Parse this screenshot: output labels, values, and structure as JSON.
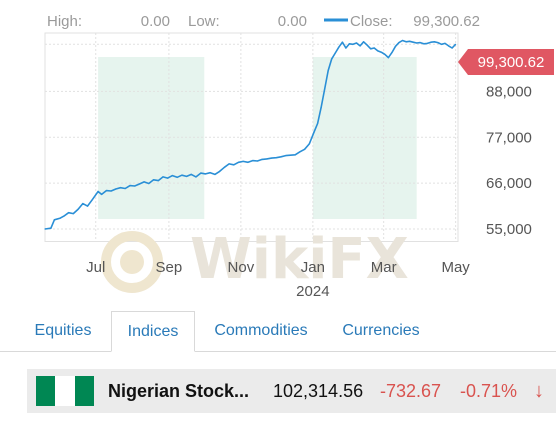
{
  "stats": {
    "high_label": "High:",
    "high_value": "0.00",
    "low_label": "Low:",
    "low_value": "0.00",
    "close_label": "Close:",
    "close_value": "99,300.62"
  },
  "price_badge": "99,300.62",
  "watermark": "WikiFX",
  "colors": {
    "line": "#2a8fd6",
    "shade": "#e6f4ee",
    "badge": "#e05763",
    "negative": "#d9534f",
    "tab_text": "#2a7ab8"
  },
  "tabs": [
    {
      "label": "Equities",
      "active": false
    },
    {
      "label": "Indices",
      "active": true
    },
    {
      "label": "Commodities",
      "active": false
    },
    {
      "label": "Currencies",
      "active": false
    }
  ],
  "row": {
    "flag": [
      "#008753",
      "#ffffff",
      "#008753"
    ],
    "name": "Nigerian Stock...",
    "last": "102,314.56",
    "change": "-732.67",
    "change_pct": "-0.71%",
    "arrow": "↓"
  },
  "chart_data": {
    "type": "line",
    "title": "",
    "xlabel": "",
    "ylabel": "",
    "ylim": [
      52000,
      102000
    ],
    "y_ticks": [
      {
        "value": 55000,
        "label": "55,000"
      },
      {
        "value": 66000,
        "label": "66,000"
      },
      {
        "value": 77000,
        "label": "77,000"
      },
      {
        "value": 88000,
        "label": "88,000"
      }
    ],
    "xlim": [
      "2023-05-19",
      "2024-05-03"
    ],
    "x_ticks": [
      {
        "date": "2023-07-01",
        "label": "Jul"
      },
      {
        "date": "2023-09-01",
        "label": "Sep"
      },
      {
        "date": "2023-11-01",
        "label": "Nov"
      },
      {
        "date": "2024-01-01",
        "label": "Jan",
        "sub": "2024"
      },
      {
        "date": "2024-03-01",
        "label": "Mar"
      },
      {
        "date": "2024-05-01",
        "label": "May"
      }
    ],
    "grid": true,
    "shaded_ranges": [
      [
        "2023-07-03",
        "2023-10-01"
      ],
      [
        "2024-01-01",
        "2024-03-29"
      ]
    ],
    "series": [
      {
        "x": [
          "2023-05-19",
          "2023-05-24",
          "2023-05-27",
          "2023-06-01",
          "2023-06-04",
          "2023-06-08",
          "2023-06-12",
          "2023-06-16",
          "2023-06-20",
          "2023-06-24",
          "2023-06-28",
          "2023-07-03",
          "2023-07-06",
          "2023-07-10",
          "2023-07-14",
          "2023-07-18",
          "2023-07-22",
          "2023-07-26",
          "2023-07-30",
          "2023-08-03",
          "2023-08-07",
          "2023-08-11",
          "2023-08-15",
          "2023-08-19",
          "2023-08-23",
          "2023-08-27",
          "2023-08-31",
          "2023-09-04",
          "2023-09-08",
          "2023-09-12",
          "2023-09-16",
          "2023-09-20",
          "2023-09-24",
          "2023-09-28",
          "2023-10-02",
          "2023-10-06",
          "2023-10-10",
          "2023-10-14",
          "2023-10-18",
          "2023-10-22",
          "2023-10-26",
          "2023-10-30",
          "2023-11-03",
          "2023-11-07",
          "2023-11-11",
          "2023-11-15",
          "2023-11-19",
          "2023-11-23",
          "2023-11-27",
          "2023-12-01",
          "2023-12-05",
          "2023-12-09",
          "2023-12-13",
          "2023-12-17",
          "2023-12-21",
          "2023-12-25",
          "2023-12-29",
          "2024-01-02",
          "2024-01-05",
          "2024-01-08",
          "2024-01-11",
          "2024-01-14",
          "2024-01-17",
          "2024-01-20",
          "2024-01-23",
          "2024-01-26",
          "2024-01-29",
          "2024-02-01",
          "2024-02-04",
          "2024-02-07",
          "2024-02-10",
          "2024-02-13",
          "2024-02-16",
          "2024-02-19",
          "2024-02-22",
          "2024-02-25",
          "2024-02-28",
          "2024-03-02",
          "2024-03-05",
          "2024-03-08",
          "2024-03-11",
          "2024-03-14",
          "2024-03-17",
          "2024-03-20",
          "2024-03-23",
          "2024-03-26",
          "2024-03-29",
          "2024-04-01",
          "2024-04-04",
          "2024-04-07",
          "2024-04-10",
          "2024-04-13",
          "2024-04-16",
          "2024-04-19",
          "2024-04-22",
          "2024-04-25",
          "2024-04-28",
          "2024-05-01"
        ],
        "y": [
          55000,
          55200,
          57200,
          57600,
          58100,
          58900,
          58700,
          59700,
          61100,
          60500,
          62000,
          64000,
          63300,
          64200,
          64100,
          64600,
          64900,
          64700,
          65400,
          65300,
          65800,
          66300,
          65900,
          66800,
          66600,
          67500,
          67200,
          67800,
          67400,
          67900,
          67600,
          68100,
          67500,
          68400,
          68200,
          68500,
          68100,
          68800,
          69800,
          70600,
          70400,
          71000,
          71200,
          71000,
          71400,
          71300,
          71700,
          71800,
          72000,
          72100,
          72300,
          72600,
          72700,
          72800,
          73500,
          74100,
          75400,
          78200,
          80300,
          84100,
          88600,
          93000,
          95800,
          97200,
          98600,
          99800,
          98400,
          99400,
          99300,
          99600,
          98900,
          99900,
          99100,
          98200,
          98400,
          97700,
          97400,
          96900,
          96100,
          97300,
          98800,
          99700,
          100200,
          99900,
          100000,
          99800,
          99600,
          99700,
          99400,
          99500,
          99800,
          99900,
          99700,
          99300,
          99500,
          98900,
          98400,
          99300
        ]
      }
    ]
  }
}
